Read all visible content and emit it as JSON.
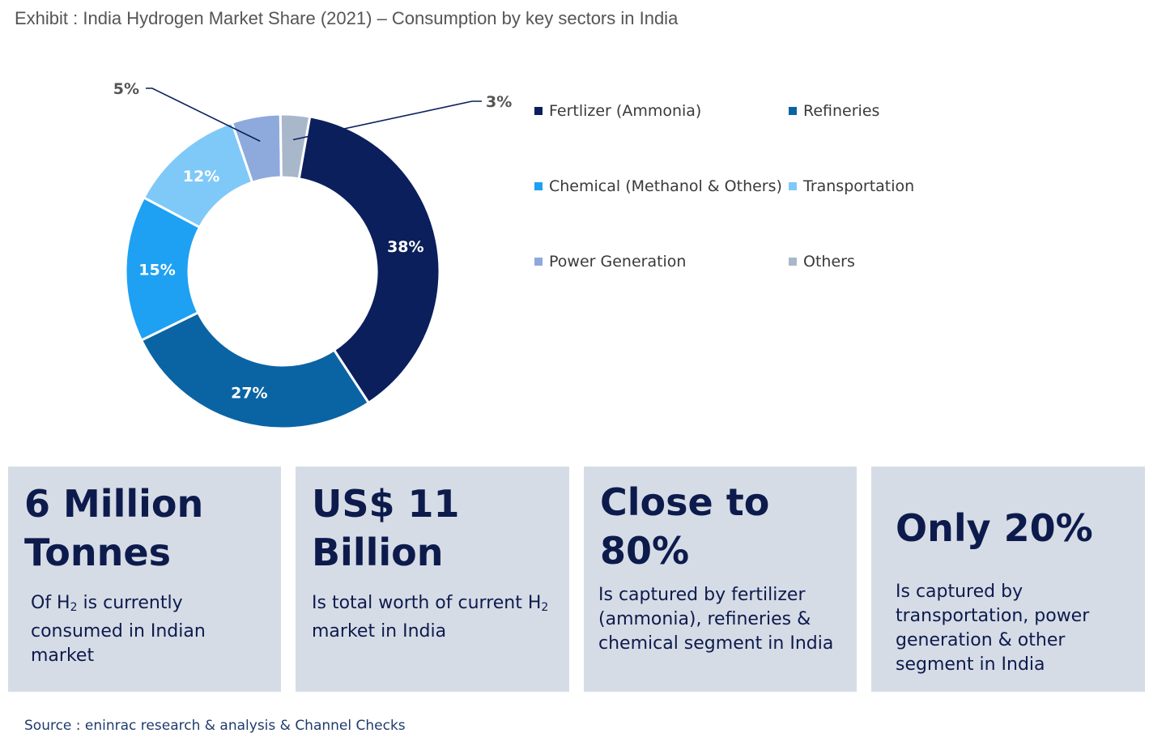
{
  "title": "Exhibit : India Hydrogen Market Share (2021) – Consumption by key sectors in India",
  "chart_data": {
    "type": "pie",
    "variant": "donut",
    "unit": "%",
    "categories": [
      "Fertlizer (Ammonia)",
      "Refineries",
      "Chemical (Methanol & Others)",
      "Transportation",
      "Power Generation",
      "Others"
    ],
    "values": [
      38,
      27,
      15,
      12,
      5,
      3
    ],
    "labels": [
      "38%",
      "27%",
      "15%",
      "12%",
      "5%",
      "3%"
    ],
    "colors": [
      "#0b1f5c",
      "#0a64a4",
      "#1ea1f2",
      "#7fc9f8",
      "#8eaadc",
      "#a9b7cb"
    ],
    "legend_position": "right"
  },
  "cards": [
    {
      "head_lines": [
        "6 Million",
        "Tonnes"
      ],
      "body_html": "Of H<sub>2</sub> is currently consumed in Indian market"
    },
    {
      "head_lines": [
        "US$ 11",
        "Billion"
      ],
      "body_html": "Is total worth of current H<sub>2</sub> market in India"
    },
    {
      "head_lines": [
        "Close to",
        "80%"
      ],
      "body_html": "Is captured by fertilizer (ammonia), refineries & chemical segment in India"
    },
    {
      "head_lines": [
        "Only 20%"
      ],
      "body_html": "Is captured by transportation, power generation & other segment in India"
    }
  ],
  "source": "Source : eninrac research & analysis & Channel Checks"
}
